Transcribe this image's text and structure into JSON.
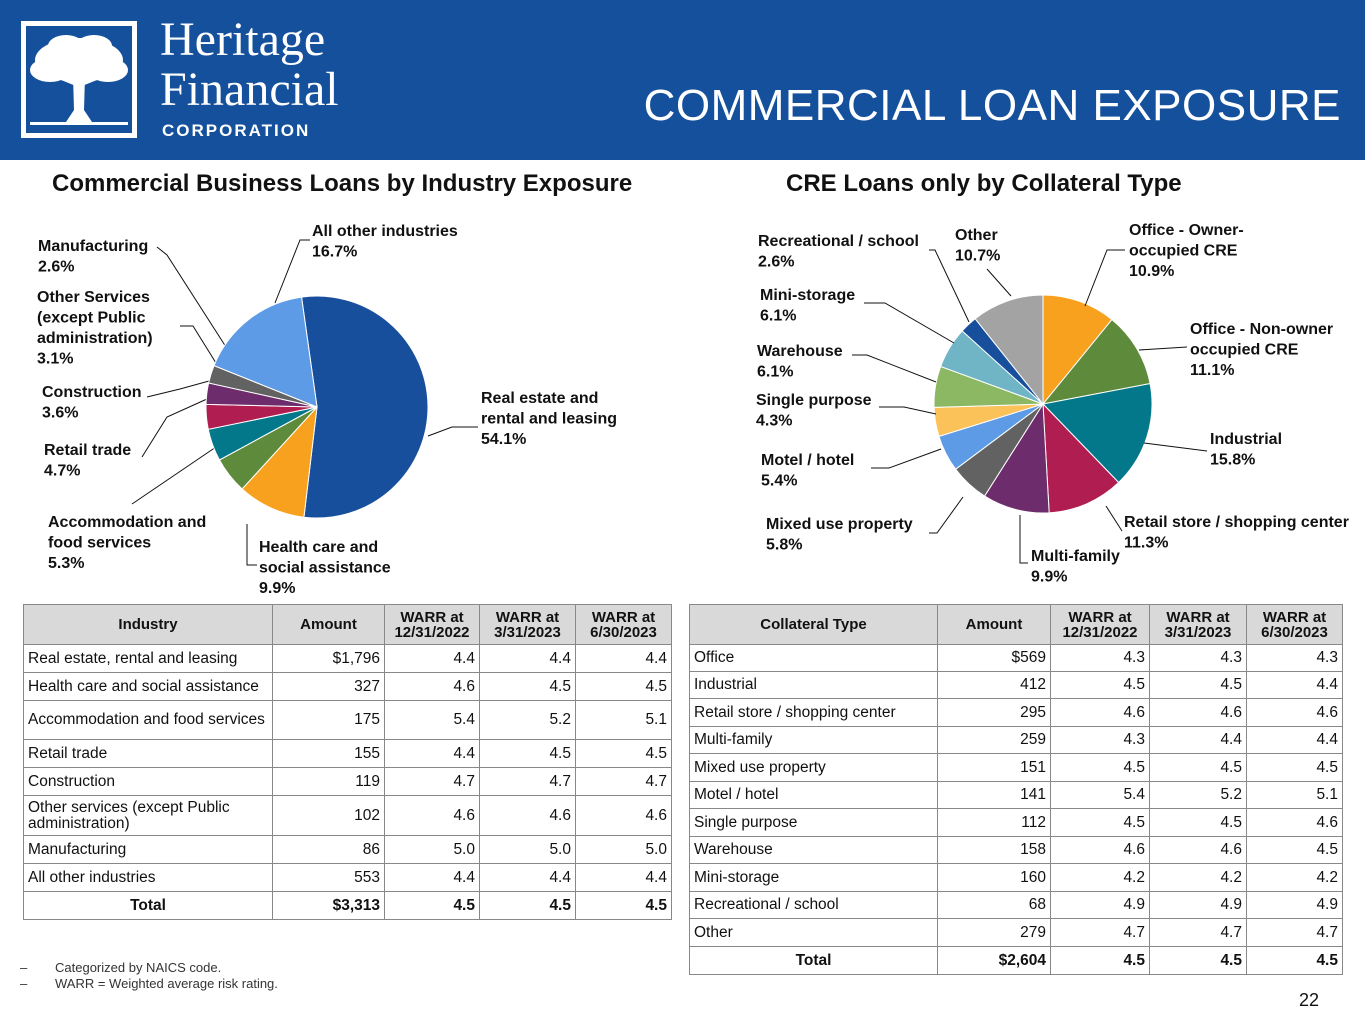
{
  "header": {
    "brand_line1": "Heritage",
    "brand_line2": "Financial",
    "brand_line3": "CORPORATION",
    "title": "COMMERCIAL LOAN EXPOSURE",
    "logo_icon": "tree-logo-icon",
    "background": "#15509c"
  },
  "chart_data": [
    {
      "type": "pie",
      "title": "Commercial Business Loans by Industry Exposure",
      "slices": [
        {
          "label": [
            "Real estate and",
            "rental and leasing"
          ],
          "value": 54.1,
          "value_text": "54.1%",
          "color": "#174f9c"
        },
        {
          "label": [
            "Health care and",
            "social assistance"
          ],
          "value": 9.9,
          "value_text": "9.9%",
          "color": "#f8a11f"
        },
        {
          "label": [
            "Accommodation and",
            "food services"
          ],
          "value": 5.3,
          "value_text": "5.3%",
          "color": "#5e8b3b"
        },
        {
          "label": [
            "Retail trade"
          ],
          "value": 4.7,
          "value_text": "4.7%",
          "color": "#03788a"
        },
        {
          "label": [
            "Construction"
          ],
          "value": 3.6,
          "value_text": "3.6%",
          "color": "#b01d51"
        },
        {
          "label": [
            "Other Services",
            "(except Public",
            "administration)"
          ],
          "value": 3.1,
          "value_text": "3.1%",
          "color": "#6d2d6c"
        },
        {
          "label": [
            "Manufacturing"
          ],
          "value": 2.6,
          "value_text": "2.6%",
          "color": "#626262"
        },
        {
          "label": [
            "All other industries"
          ],
          "value": 16.7,
          "value_text": "16.7%",
          "color": "#5e9be6"
        }
      ]
    },
    {
      "type": "pie",
      "title": "CRE Loans only by Collateral Type",
      "slices": [
        {
          "label": [
            "Office - Owner-",
            "occupied CRE"
          ],
          "value": 10.9,
          "value_text": "10.9%",
          "color": "#f8a11f"
        },
        {
          "label": [
            "Office - Non-owner",
            "occupied CRE"
          ],
          "value": 11.1,
          "value_text": "11.1%",
          "color": "#5e8b3b"
        },
        {
          "label": [
            "Industrial"
          ],
          "value": 15.8,
          "value_text": "15.8%",
          "color": "#03788a"
        },
        {
          "label": [
            "Retail store / shopping center"
          ],
          "value": 11.3,
          "value_text": "11.3%",
          "color": "#b01d51"
        },
        {
          "label": [
            "Multi-family"
          ],
          "value": 9.9,
          "value_text": "9.9%",
          "color": "#6d2d6c"
        },
        {
          "label": [
            "Mixed use property"
          ],
          "value": 5.8,
          "value_text": "5.8%",
          "color": "#626262"
        },
        {
          "label": [
            "Motel / hotel"
          ],
          "value": 5.4,
          "value_text": "5.4%",
          "color": "#5e9be6"
        },
        {
          "label": [
            "Single purpose"
          ],
          "value": 4.3,
          "value_text": "4.3%",
          "color": "#fbc25a"
        },
        {
          "label": [
            "Warehouse"
          ],
          "value": 6.1,
          "value_text": "6.1%",
          "color": "#8cb863"
        },
        {
          "label": [
            "Mini-storage"
          ],
          "value": 6.1,
          "value_text": "6.1%",
          "color": "#6fb5c6"
        },
        {
          "label": [
            "Recreational / school"
          ],
          "value": 2.6,
          "value_text": "2.6%",
          "color": "#174f9c"
        },
        {
          "label": [
            "Other"
          ],
          "value": 10.7,
          "value_text": "10.7%",
          "color": "#a3a3a3"
        }
      ]
    }
  ],
  "tables": {
    "industry": {
      "headers": [
        "Industry",
        "Amount",
        "WARR at\n12/31/2022",
        "WARR at\n3/31/2023",
        "WARR at\n6/30/2023"
      ],
      "rows": [
        [
          "Real estate, rental and leasing",
          "$1,796",
          "4.4",
          "4.4",
          "4.4"
        ],
        [
          "Health care and social assistance",
          "327",
          "4.6",
          "4.5",
          "4.5"
        ],
        [
          "Accommodation and food services",
          "175",
          "5.4",
          "5.2",
          "5.1"
        ],
        [
          "Retail trade",
          "155",
          "4.4",
          "4.5",
          "4.5"
        ],
        [
          "Construction",
          "119",
          "4.7",
          "4.7",
          "4.7"
        ],
        [
          "Other services (except Public administration)",
          "102",
          "4.6",
          "4.6",
          "4.6"
        ],
        [
          "Manufacturing",
          "86",
          "5.0",
          "5.0",
          "5.0"
        ],
        [
          "All other industries",
          "553",
          "4.4",
          "4.4",
          "4.4"
        ]
      ],
      "total": [
        "Total",
        "$3,313",
        "4.5",
        "4.5",
        "4.5"
      ]
    },
    "collateral": {
      "headers": [
        "Collateral Type",
        "Amount",
        "WARR at\n12/31/2022",
        "WARR at\n3/31/2023",
        "WARR at\n6/30/2023"
      ],
      "rows": [
        [
          "Office",
          "$569",
          "4.3",
          "4.3",
          "4.3"
        ],
        [
          "Industrial",
          "412",
          "4.5",
          "4.5",
          "4.4"
        ],
        [
          "Retail store / shopping center",
          "295",
          "4.6",
          "4.6",
          "4.6"
        ],
        [
          "Multi-family",
          "259",
          "4.3",
          "4.4",
          "4.4"
        ],
        [
          "Mixed use property",
          "151",
          "4.5",
          "4.5",
          "4.5"
        ],
        [
          "Motel / hotel",
          "141",
          "5.4",
          "5.2",
          "5.1"
        ],
        [
          "Single purpose",
          "112",
          "4.5",
          "4.5",
          "4.6"
        ],
        [
          "Warehouse",
          "158",
          "4.6",
          "4.6",
          "4.5"
        ],
        [
          "Mini-storage",
          "160",
          "4.2",
          "4.2",
          "4.2"
        ],
        [
          "Recreational / school",
          "68",
          "4.9",
          "4.9",
          "4.9"
        ],
        [
          "Other",
          "279",
          "4.7",
          "4.7",
          "4.7"
        ]
      ],
      "total": [
        "Total",
        "$2,604",
        "4.5",
        "4.5",
        "4.5"
      ]
    }
  },
  "notes": {
    "dash": "–",
    "note1": "Categorized by NAICS code.",
    "note2": "WARR = Weighted average risk rating."
  },
  "page_number": "22"
}
